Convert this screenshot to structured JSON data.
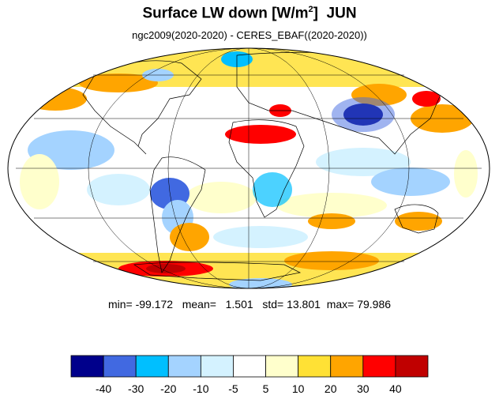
{
  "title": {
    "main": "Surface LW down [W/m",
    "sup": "2",
    "close": "]",
    "month": "JUN"
  },
  "subtitle": "ngc2009(2020-2020) - CERES_EBAF((2020-2020))",
  "stats": {
    "min_label": "min=",
    "min": "-99.172",
    "mean_label": "mean=",
    "mean": "1.501",
    "std_label": "std=",
    "std": "13.801",
    "max_label": "max=",
    "max": "79.986"
  },
  "colorbar": {
    "colors": [
      "#00008b",
      "#4169e1",
      "#00bfff",
      "#a4d3ff",
      "#d4f2ff",
      "#ffffff",
      "#ffffcc",
      "#ffe135",
      "#ffa500",
      "#ff0000",
      "#c00000"
    ],
    "labels": [
      "-40",
      "-30",
      "-20",
      "-10",
      "-5",
      "5",
      "10",
      "20",
      "30",
      "40"
    ]
  },
  "map": {
    "projection": "Mollweide",
    "grid": true,
    "graticule_lon_step_deg": 60,
    "graticule_lat_step_deg": 30
  }
}
